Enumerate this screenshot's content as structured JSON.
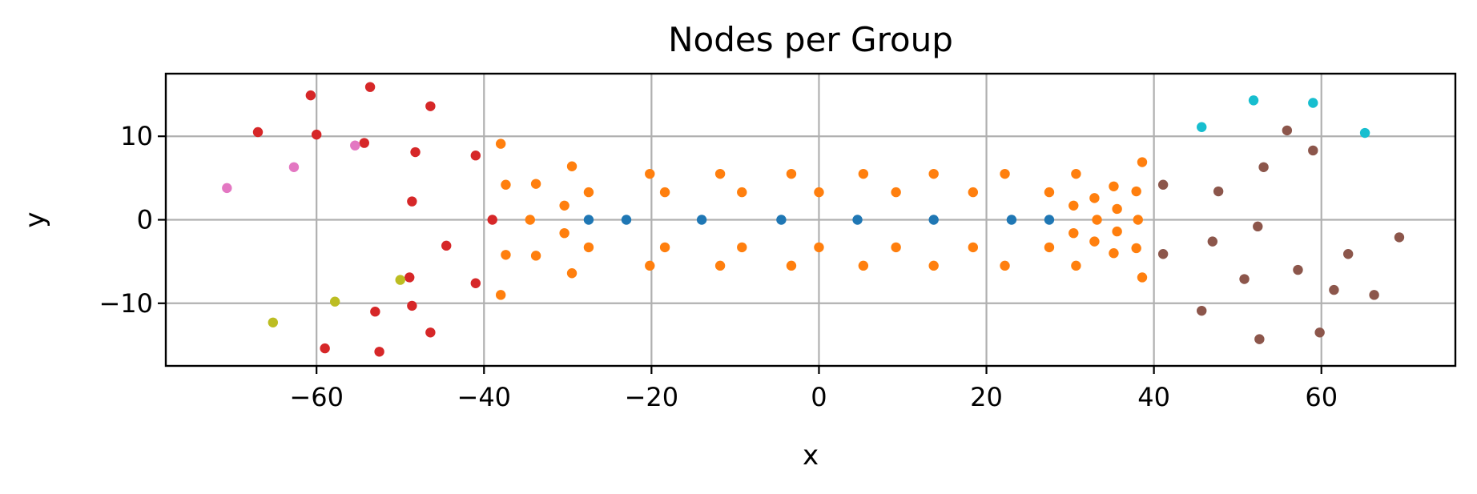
{
  "chart_data": {
    "type": "scatter",
    "title": "Nodes per Group",
    "xlabel": "x",
    "ylabel": "y",
    "xlim": [
      -78,
      76
    ],
    "ylim": [
      -17.5,
      17.5
    ],
    "xticks": [
      -60,
      -40,
      -20,
      0,
      20,
      40,
      60
    ],
    "yticks": [
      -10,
      0,
      10
    ],
    "xtick_labels": [
      "−60",
      "−40",
      "−20",
      "0",
      "20",
      "40",
      "60"
    ],
    "ytick_labels": [
      "−10",
      "0",
      "10"
    ],
    "grid": true,
    "series": [
      {
        "color": "#1f77b4",
        "points": [
          [
            -27.5,
            0
          ],
          [
            -23,
            0
          ],
          [
            -14,
            0
          ],
          [
            -4.5,
            0
          ],
          [
            4.6,
            0
          ],
          [
            13.7,
            0
          ],
          [
            23,
            0
          ],
          [
            27.5,
            0
          ]
        ]
      },
      {
        "color": "#ff7f0e",
        "points": [
          [
            -38,
            9.1
          ],
          [
            -37.4,
            4.2
          ],
          [
            -37.4,
            -4.2
          ],
          [
            -38,
            -9.0
          ],
          [
            -34.5,
            0
          ],
          [
            -33.8,
            4.3
          ],
          [
            -33.8,
            -4.3
          ],
          [
            -30.4,
            1.7
          ],
          [
            -30.4,
            -1.6
          ],
          [
            -29.5,
            6.4
          ],
          [
            -29.5,
            -6.4
          ],
          [
            -27.5,
            3.3
          ],
          [
            -27.5,
            -3.3
          ],
          [
            -20.2,
            5.5
          ],
          [
            -20.2,
            -5.5
          ],
          [
            -18.4,
            3.3
          ],
          [
            -18.4,
            -3.3
          ],
          [
            -11.8,
            5.5
          ],
          [
            -11.8,
            -5.5
          ],
          [
            -9.2,
            3.3
          ],
          [
            -9.2,
            -3.3
          ],
          [
            -3.3,
            5.5
          ],
          [
            -3.3,
            -5.5
          ],
          [
            0,
            3.3
          ],
          [
            0,
            -3.3
          ],
          [
            5.3,
            5.5
          ],
          [
            5.3,
            -5.5
          ],
          [
            9.2,
            3.3
          ],
          [
            9.2,
            -3.3
          ],
          [
            13.7,
            5.5
          ],
          [
            13.7,
            -5.5
          ],
          [
            18.4,
            3.3
          ],
          [
            18.4,
            -3.3
          ],
          [
            22.2,
            5.5
          ],
          [
            22.2,
            -5.5
          ],
          [
            27.5,
            3.3
          ],
          [
            27.5,
            -3.3
          ],
          [
            30.4,
            1.7
          ],
          [
            30.4,
            -1.6
          ],
          [
            30.7,
            5.5
          ],
          [
            30.7,
            -5.5
          ],
          [
            32.9,
            2.6
          ],
          [
            32.9,
            -2.6
          ],
          [
            33.2,
            0
          ],
          [
            35.2,
            4.0
          ],
          [
            35.2,
            -4.0
          ],
          [
            35.6,
            1.3
          ],
          [
            35.6,
            -1.4
          ],
          [
            37.9,
            3.4
          ],
          [
            37.9,
            -3.4
          ],
          [
            38.1,
            0
          ],
          [
            38.6,
            6.9
          ],
          [
            38.6,
            -6.9
          ]
        ]
      },
      {
        "color": "#d62728",
        "points": [
          [
            -67,
            10.5
          ],
          [
            -60.7,
            14.9
          ],
          [
            -60,
            10.2
          ],
          [
            -59,
            -15.4
          ],
          [
            -54.3,
            9.2
          ],
          [
            -53.6,
            15.9
          ],
          [
            -53,
            -11.0
          ],
          [
            -52.5,
            -15.8
          ],
          [
            -48.9,
            -6.9
          ],
          [
            -48.6,
            2.2
          ],
          [
            -48.6,
            -10.3
          ],
          [
            -48.2,
            8.1
          ],
          [
            -46.4,
            13.6
          ],
          [
            -46.4,
            -13.5
          ],
          [
            -44.5,
            -3.1
          ],
          [
            -41,
            7.7
          ],
          [
            -41,
            -7.6
          ],
          [
            -39,
            0
          ]
        ]
      },
      {
        "color": "#8c564b",
        "points": [
          [
            41.1,
            4.2
          ],
          [
            41.1,
            -4.1
          ],
          [
            45.7,
            -10.9
          ],
          [
            47,
            -2.6
          ],
          [
            47.7,
            3.4
          ],
          [
            50.8,
            -7.1
          ],
          [
            52.4,
            -0.8
          ],
          [
            52.6,
            -14.3
          ],
          [
            53.1,
            6.3
          ],
          [
            55.9,
            10.7
          ],
          [
            57.2,
            -6.0
          ],
          [
            59,
            8.3
          ],
          [
            59.8,
            -13.5
          ],
          [
            61.5,
            -8.4
          ],
          [
            63.2,
            -4.1
          ],
          [
            66.3,
            -9.0
          ],
          [
            69.3,
            -2.1
          ]
        ]
      },
      {
        "color": "#17becf",
        "points": [
          [
            45.7,
            11.1
          ],
          [
            51.9,
            14.3
          ],
          [
            59,
            14.0
          ],
          [
            65.2,
            10.4
          ]
        ]
      },
      {
        "color": "#e377c2",
        "points": [
          [
            -70.7,
            3.8
          ],
          [
            -62.7,
            6.3
          ],
          [
            -55.4,
            8.9
          ]
        ]
      },
      {
        "color": "#bcbd22",
        "points": [
          [
            -65.2,
            -12.3
          ],
          [
            -57.8,
            -9.8
          ],
          [
            -50,
            -7.2
          ]
        ]
      }
    ]
  }
}
